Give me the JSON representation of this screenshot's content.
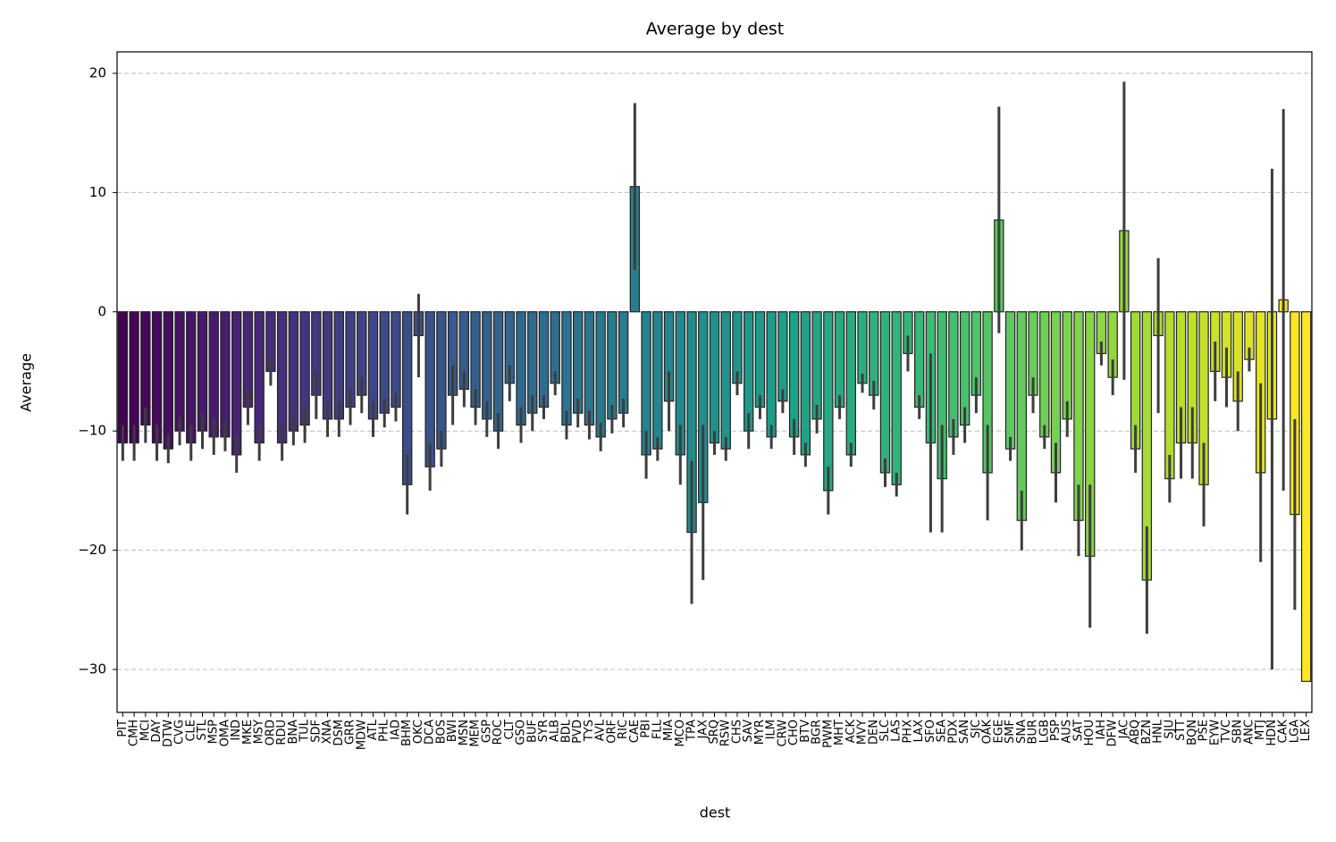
{
  "chart_data": {
    "type": "bar",
    "title": "Average by dest",
    "x_label": "dest",
    "y_label": "Average",
    "palette": "viridis",
    "grid": true,
    "ylim": [
      -33.6,
      21.8
    ],
    "yticks": [
      {
        "value": -30,
        "label": "−30"
      },
      {
        "value": -20,
        "label": "−20"
      },
      {
        "value": -10,
        "label": "−10"
      },
      0,
      10,
      20
    ],
    "categories": [
      "PIT",
      "CMH",
      "MCI",
      "DAY",
      "DTW",
      "CVG",
      "CLE",
      "STL",
      "MSP",
      "OMA",
      "IND",
      "MKE",
      "MSY",
      "ORD",
      "RDU",
      "BNA",
      "TUL",
      "SDF",
      "XNA",
      "DSM",
      "GRR",
      "MDW",
      "ATL",
      "PHL",
      "IAD",
      "BHM",
      "OKC",
      "DCA",
      "BOS",
      "BWI",
      "MSN",
      "MEM",
      "GSP",
      "ROC",
      "CLT",
      "GSO",
      "BUF",
      "SYR",
      "ALB",
      "BDL",
      "PVD",
      "TYS",
      "AVL",
      "ORF",
      "RIC",
      "CAE",
      "PBI",
      "FLL",
      "MIA",
      "MCO",
      "TPA",
      "JAX",
      "SRQ",
      "RSW",
      "CHS",
      "SAV",
      "MYR",
      "ILM",
      "CRW",
      "CHO",
      "BTV",
      "BGR",
      "PWM",
      "MHT",
      "ACK",
      "MVY",
      "DEN",
      "SLC",
      "LAS",
      "PHX",
      "LAX",
      "SFO",
      "SEA",
      "PDX",
      "SAN",
      "SJC",
      "OAK",
      "EGE",
      "SMF",
      "SNA",
      "BUR",
      "LGB",
      "PSP",
      "AUS",
      "SAT",
      "HOU",
      "IAH",
      "DFW",
      "JAC",
      "ABQ",
      "BZN",
      "HNL",
      "SJU",
      "STT",
      "BQN",
      "PSE",
      "EYW",
      "TVC",
      "SBN",
      "ANC",
      "MTJ",
      "HDN",
      "CAK",
      "LGA",
      "LEX"
    ],
    "values": [
      -11,
      -11,
      -9.5,
      -11,
      -11.5,
      -10,
      -11,
      -10,
      -10.5,
      -10.5,
      -12,
      -8,
      -11,
      -5,
      -11,
      -10,
      -9.5,
      -7,
      -9,
      -9,
      -8,
      -7,
      -9,
      -8.5,
      -8,
      -14.5,
      -2,
      -13,
      -11.5,
      -7,
      -6.5,
      -8,
      -9,
      -10,
      -6,
      -9.5,
      -8.5,
      -8,
      -6,
      -9.5,
      -8.5,
      -9.5,
      -10.5,
      -9,
      -8.5,
      10.5,
      -12,
      -11.5,
      -7.5,
      -12,
      -18.5,
      -16,
      -11,
      -11.5,
      -6,
      -10,
      -8,
      -10.5,
      -7.5,
      -10.5,
      -12,
      -9,
      -15,
      -8,
      -12,
      -6,
      -7,
      -13.5,
      -14.5,
      -3.5,
      -8,
      -11,
      -14,
      -10.5,
      -9.5,
      -7,
      -13.5,
      7.7,
      -11.5,
      -17.5,
      -7,
      -10.5,
      -13.5,
      -9,
      -17.5,
      -20.5,
      -3.5,
      -5.5,
      6.8,
      -11.5,
      -22.5,
      -2,
      -14,
      -11,
      -11,
      -14.5,
      -5,
      -5.5,
      -7.5,
      -4,
      -13.5,
      -9,
      1,
      -17,
      -31
    ],
    "errors": [
      1.5,
      1.5,
      1.5,
      1.5,
      1.2,
      1.2,
      1.5,
      1.5,
      1.5,
      1.2,
      1.5,
      1.5,
      1.5,
      1.2,
      1.5,
      1.2,
      1.5,
      2,
      1.5,
      1.5,
      1.5,
      1.5,
      1.5,
      1.2,
      1.2,
      2.5,
      3.5,
      2,
      1.5,
      2.5,
      1.5,
      1.5,
      1.5,
      1.5,
      1.5,
      1.5,
      1.5,
      1,
      1,
      1.2,
      1.2,
      1.2,
      1.2,
      1.2,
      1.2,
      7,
      2,
      1,
      2.5,
      2.5,
      6,
      6.5,
      1,
      1,
      1,
      1.5,
      1,
      1,
      1,
      1.5,
      1,
      1.2,
      2,
      1,
      1,
      0.8,
      1.2,
      1.2,
      1,
      1.5,
      1,
      7.5,
      4.5,
      1.5,
      1.5,
      1.5,
      4,
      9.5,
      1,
      2.5,
      1.5,
      1,
      2.5,
      1.5,
      3,
      6,
      1,
      1.5,
      12.5,
      2,
      4.5,
      6.5,
      2,
      3,
      3,
      3.5,
      2.5,
      2.5,
      2.5,
      1,
      7.5,
      21,
      16,
      8,
      0
    ]
  }
}
